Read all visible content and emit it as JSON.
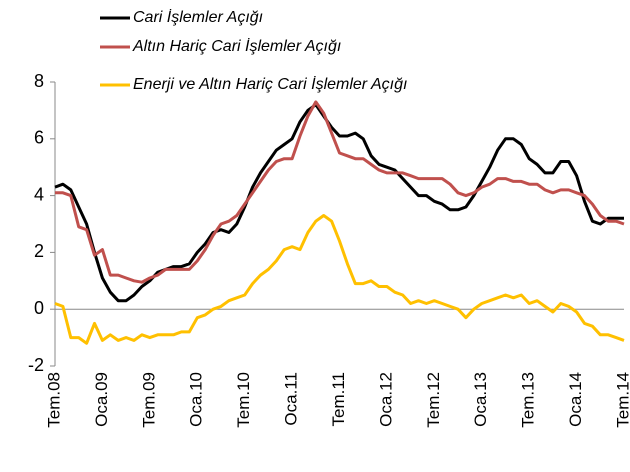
{
  "chart_data": {
    "type": "line",
    "categories": [
      "Tem.08",
      null,
      null,
      null,
      null,
      null,
      "Oca.09",
      null,
      null,
      null,
      null,
      null,
      "Tem.09",
      null,
      null,
      null,
      null,
      null,
      "Oca.10",
      null,
      null,
      null,
      null,
      null,
      "Tem.10",
      null,
      null,
      null,
      null,
      null,
      "Oca.11",
      null,
      null,
      null,
      null,
      null,
      "Tem.11",
      null,
      null,
      null,
      null,
      null,
      "Oca.12",
      null,
      null,
      null,
      null,
      null,
      "Tem.12",
      null,
      null,
      null,
      null,
      null,
      "Oca.13",
      null,
      null,
      null,
      null,
      null,
      "Tem.13",
      null,
      null,
      null,
      null,
      null,
      "Oca.14",
      null,
      null,
      null,
      null,
      null,
      "Tem.14"
    ],
    "series": [
      {
        "name": "Cari İşlemler Açığı",
        "color": "#000000",
        "values": [
          4.3,
          4.4,
          4.2,
          3.6,
          3.0,
          2.0,
          1.1,
          0.6,
          0.3,
          0.3,
          0.5,
          0.8,
          1.0,
          1.3,
          1.4,
          1.5,
          1.5,
          1.6,
          2.0,
          2.3,
          2.7,
          2.8,
          2.7,
          3.0,
          3.6,
          4.3,
          4.8,
          5.2,
          5.6,
          5.8,
          6.0,
          6.6,
          7.0,
          7.2,
          6.8,
          6.4,
          6.1,
          6.1,
          6.2,
          6.0,
          5.4,
          5.1,
          5.0,
          4.9,
          4.6,
          4.3,
          4.0,
          4.0,
          3.8,
          3.7,
          3.5,
          3.5,
          3.6,
          4.0,
          4.5,
          5.0,
          5.6,
          6.0,
          6.0,
          5.8,
          5.3,
          5.1,
          4.8,
          4.8,
          5.2,
          5.2,
          4.7,
          3.8,
          3.1,
          3.0,
          3.2,
          3.2,
          3.2
        ]
      },
      {
        "name": "Altın Hariç Cari İşlemler Açığı",
        "color": "#c0504d",
        "values": [
          4.1,
          4.1,
          4.0,
          2.9,
          2.8,
          1.9,
          2.1,
          1.2,
          1.2,
          1.1,
          1.0,
          0.95,
          1.1,
          1.2,
          1.4,
          1.4,
          1.4,
          1.4,
          1.7,
          2.1,
          2.6,
          3.0,
          3.1,
          3.3,
          3.7,
          4.1,
          4.5,
          4.9,
          5.2,
          5.3,
          5.3,
          6.1,
          6.8,
          7.3,
          6.9,
          6.2,
          5.5,
          5.4,
          5.3,
          5.3,
          5.1,
          4.9,
          4.8,
          4.8,
          4.8,
          4.7,
          4.6,
          4.6,
          4.6,
          4.6,
          4.4,
          4.1,
          4.0,
          4.1,
          4.3,
          4.4,
          4.6,
          4.6,
          4.5,
          4.5,
          4.4,
          4.4,
          4.2,
          4.1,
          4.2,
          4.2,
          4.1,
          4.0,
          3.7,
          3.3,
          3.1,
          3.1,
          3.0
        ]
      },
      {
        "name": "Enerji ve Altın Hariç Cari İşlemler Açığı",
        "color": "#ffc000",
        "values": [
          0.2,
          0.1,
          -1.0,
          -1.0,
          -1.2,
          -0.5,
          -1.1,
          -0.9,
          -1.1,
          -1.0,
          -1.1,
          -0.9,
          -1.0,
          -0.9,
          -0.9,
          -0.9,
          -0.8,
          -0.8,
          -0.3,
          -0.2,
          0.0,
          0.1,
          0.3,
          0.4,
          0.5,
          0.9,
          1.2,
          1.4,
          1.7,
          2.1,
          2.2,
          2.1,
          2.7,
          3.1,
          3.3,
          3.1,
          2.4,
          1.6,
          0.9,
          0.9,
          1.0,
          0.8,
          0.8,
          0.6,
          0.5,
          0.2,
          0.3,
          0.2,
          0.3,
          0.2,
          0.1,
          0.0,
          -0.3,
          0.0,
          0.2,
          0.3,
          0.4,
          0.5,
          0.4,
          0.5,
          0.2,
          0.3,
          0.1,
          -0.1,
          0.2,
          0.1,
          -0.1,
          -0.5,
          -0.6,
          -0.9,
          -0.9,
          -1.0,
          -1.1
        ]
      }
    ],
    "ylim": [
      -2,
      8
    ],
    "yticks": [
      -2,
      0,
      2,
      4,
      6,
      8
    ]
  }
}
